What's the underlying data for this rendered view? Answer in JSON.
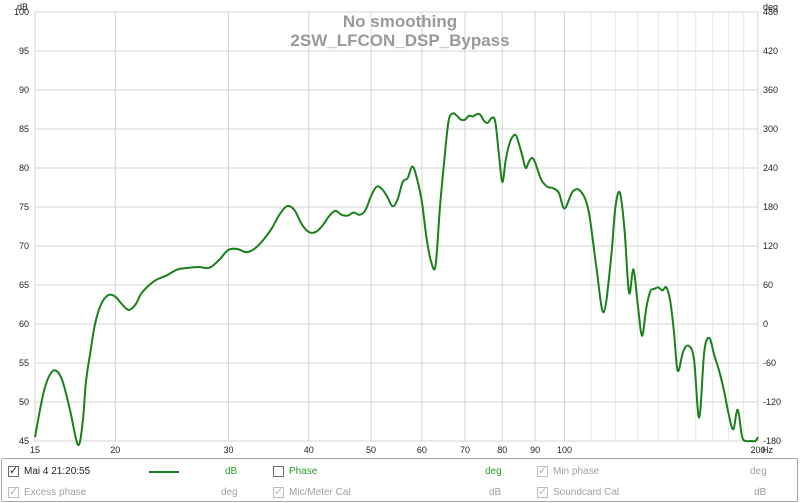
{
  "chart_data": {
    "type": "line",
    "title": "No smoothing",
    "subtitle": "2SW_LFCON_DSP_Bypass",
    "x_scale": "log",
    "xlim": [
      15,
      200
    ],
    "ylim": [
      45,
      100
    ],
    "y2lim": [
      -180,
      480
    ],
    "left_unit": "dB",
    "right_unit": "deg",
    "x_unit": "Hz",
    "x_ticks": [
      {
        "v": 15,
        "label": "15"
      },
      {
        "v": 20,
        "label": "20"
      },
      {
        "v": 30,
        "label": "30"
      },
      {
        "v": 40,
        "label": "40"
      },
      {
        "v": 50,
        "label": "50"
      },
      {
        "v": 60,
        "label": "60"
      },
      {
        "v": 70,
        "label": "70"
      },
      {
        "v": 80,
        "label": "80"
      },
      {
        "v": 90,
        "label": "90"
      },
      {
        "v": 100,
        "label": "100"
      },
      {
        "v": 200,
        "label": "200"
      }
    ],
    "x_minor_grid": [
      110,
      120,
      130,
      140,
      150,
      160,
      170,
      180,
      190
    ],
    "y_ticks": [
      45,
      50,
      55,
      60,
      65,
      70,
      75,
      80,
      85,
      90,
      95,
      100
    ],
    "y2_ticks": [
      -180,
      -120,
      -60,
      0,
      60,
      120,
      180,
      240,
      300,
      360,
      420,
      480
    ],
    "grid": true,
    "series": [
      {
        "name": "Mai 4 21:20:55",
        "color": "#1a801a",
        "x": [
          15,
          15.5,
          16,
          16.5,
          17,
          17.5,
          17.8,
          18.0,
          18.3,
          18.6,
          19,
          19.5,
          20,
          20.5,
          21,
          21.5,
          22,
          23,
          24,
          25,
          26,
          27,
          28,
          29,
          30,
          31,
          32,
          33,
          34,
          35,
          36,
          37,
          38,
          39,
          40,
          41,
          42,
          43,
          44,
          45,
          46,
          47,
          48,
          49,
          50,
          51,
          52,
          53,
          54,
          55,
          56,
          57,
          58,
          59,
          60,
          61,
          62,
          63,
          64,
          65,
          66,
          67,
          68,
          69,
          70,
          71,
          72,
          73,
          74,
          75,
          76,
          77,
          78,
          79,
          80,
          81,
          82,
          83,
          84,
          85,
          86,
          87,
          88,
          89,
          90,
          92,
          94,
          96,
          98,
          100,
          103,
          106,
          109,
          112,
          115,
          118,
          120,
          122,
          124,
          126,
          128,
          130,
          132,
          134,
          136,
          138,
          140,
          142,
          144,
          146,
          148,
          150,
          153,
          156,
          159,
          162,
          165,
          168,
          171,
          174,
          177,
          180,
          183,
          186,
          189,
          192,
          195,
          198,
          200
        ],
        "values": [
          45.5,
          51.5,
          54.0,
          53.0,
          49.0,
          44.5,
          47.5,
          52.5,
          56.5,
          60.0,
          62.5,
          63.7,
          63.5,
          62.5,
          61.8,
          62.5,
          64.0,
          65.5,
          66.2,
          67.0,
          67.2,
          67.3,
          67.2,
          68.2,
          69.5,
          69.6,
          69.2,
          69.7,
          70.8,
          72.2,
          74.0,
          75.1,
          74.6,
          72.8,
          71.8,
          71.8,
          72.6,
          73.8,
          74.5,
          74.0,
          73.9,
          74.3,
          74.0,
          74.6,
          76.4,
          77.6,
          77.3,
          76.3,
          75.1,
          76.0,
          78.2,
          78.7,
          80.2,
          78.5,
          75.6,
          71.0,
          68.0,
          67.5,
          75.0,
          81.0,
          86.0,
          87.0,
          86.7,
          86.2,
          86.2,
          86.7,
          86.6,
          86.9,
          86.8,
          86.0,
          85.8,
          86.4,
          86.0,
          82.0,
          78.2,
          81.0,
          83.0,
          84.0,
          84.2,
          83.0,
          81.5,
          80.0,
          80.8,
          81.3,
          80.7,
          78.5,
          77.6,
          77.4,
          76.8,
          74.8,
          77.0,
          77.0,
          74.5,
          67.5,
          61.5,
          68.0,
          75.0,
          76.8,
          72.0,
          64.0,
          67.0,
          62.5,
          58.5,
          62.0,
          64.2,
          64.5,
          64.7,
          64.3,
          64.7,
          63.0,
          59.0,
          54.0,
          56.5,
          57.2,
          55.5,
          48.0,
          56.5,
          58.2,
          56.0,
          54.0,
          51.5,
          48.5,
          46.5,
          49.0,
          45.5,
          45.0,
          45.0,
          45.0,
          45.5
        ]
      }
    ]
  },
  "legend": {
    "items": [
      {
        "label": "Mai 4 21:20:55",
        "checked": true,
        "enabled": true,
        "unit": "dB",
        "color": "#1a801a"
      },
      {
        "label": "Phase",
        "checked": false,
        "enabled": true,
        "unit": "deg",
        "color": "#2a9a2a"
      },
      {
        "label": "Min phase",
        "checked": true,
        "enabled": false,
        "unit": "deg"
      },
      {
        "label": "Excess phase",
        "checked": true,
        "enabled": false,
        "unit": "deg"
      },
      {
        "label": "Mic/Meter Cal",
        "checked": true,
        "enabled": false,
        "unit": "dB"
      },
      {
        "label": "Soundcard Cal",
        "checked": true,
        "enabled": false,
        "unit": "dB"
      }
    ]
  }
}
